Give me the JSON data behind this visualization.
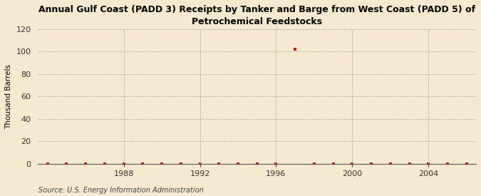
{
  "title": "Annual Gulf Coast (PADD 3) Receipts by Tanker and Barge from West Coast (PADD 5) of\nPetrochemical Feedstocks",
  "ylabel": "Thousand Barrels",
  "source": "Source: U.S. Energy Information Administration",
  "background_color": "#f5ead0",
  "years": [
    1984,
    1985,
    1986,
    1987,
    1988,
    1989,
    1990,
    1991,
    1992,
    1993,
    1994,
    1995,
    1996,
    1997,
    1998,
    1999,
    2000,
    2001,
    2002,
    2003,
    2004,
    2005,
    2006
  ],
  "values": [
    0,
    0,
    0,
    0,
    0,
    0,
    0,
    0,
    0,
    0,
    0,
    0,
    0,
    102,
    0,
    0,
    0,
    0,
    0,
    0,
    0,
    0,
    0
  ],
  "data_color": "#cc0000",
  "xlim": [
    1983.5,
    2006.5
  ],
  "ylim": [
    0,
    120
  ],
  "yticks": [
    0,
    20,
    40,
    60,
    80,
    100,
    120
  ],
  "xticks": [
    1988,
    1992,
    1996,
    2000,
    2004
  ],
  "grid_color": "#aaaaaa",
  "marker": "s",
  "marker_size": 2.5
}
